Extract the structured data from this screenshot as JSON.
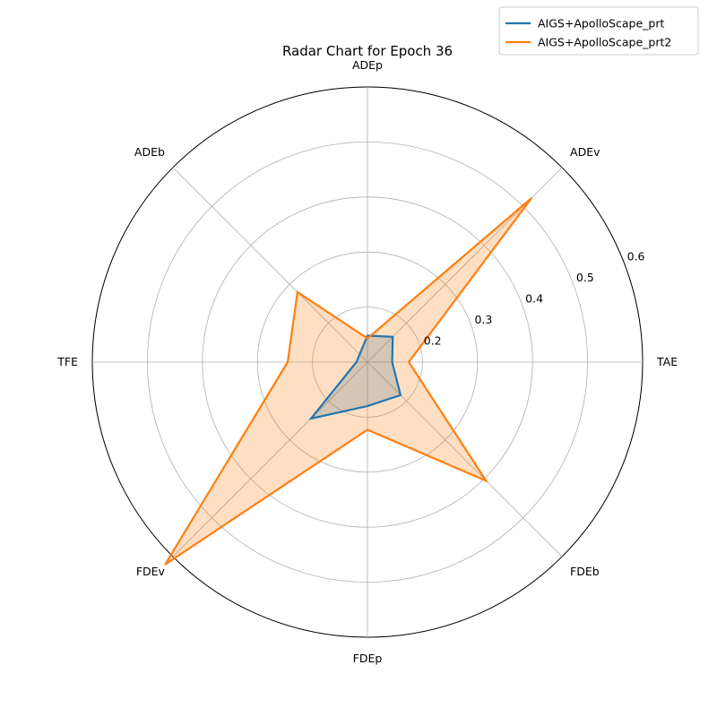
{
  "chart_data": {
    "type": "radar",
    "title": "Radar Chart for Epoch 36",
    "axes": [
      "ADEp",
      "ADEv",
      "TAE",
      "FDEb",
      "FDEp",
      "FDEv",
      "TFE",
      "ADEb"
    ],
    "rlim": [
      0.1,
      0.6
    ],
    "rticks": [
      0.2,
      0.3,
      0.4,
      0.5,
      0.6
    ],
    "rtick_labels": [
      "0.2",
      "0.3",
      "0.4",
      "0.5",
      "0.6"
    ],
    "grid": true,
    "legend_position": "top-right",
    "series": [
      {
        "name": "AIGS+ApolloScape_prt",
        "color": "#1f77b4",
        "values": [
          0.148,
          0.165,
          0.145,
          0.185,
          0.18,
          0.245,
          0.12,
          0.12
        ]
      },
      {
        "name": "AIGS+ApolloScape_prt2",
        "color": "#ff7f0e",
        "values": [
          0.143,
          0.522,
          0.175,
          0.405,
          0.223,
          0.62,
          0.245,
          0.28
        ]
      }
    ]
  }
}
